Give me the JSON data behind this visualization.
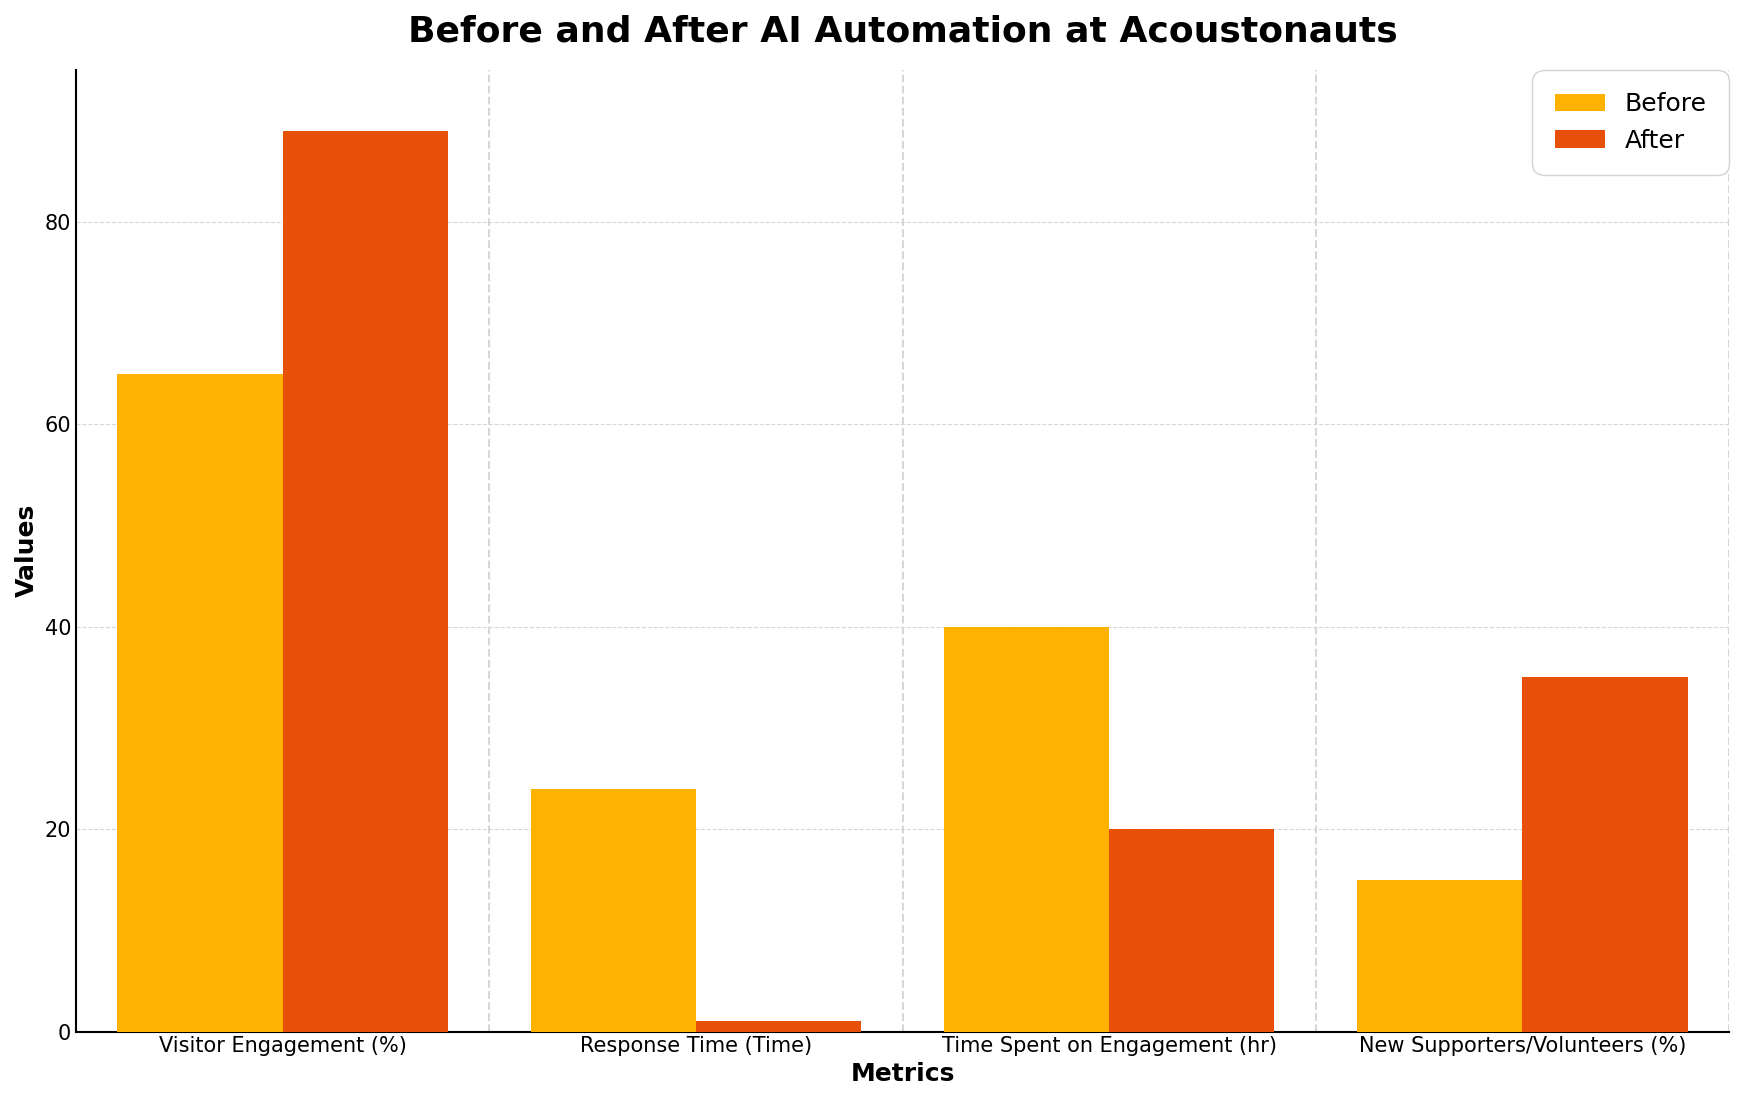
{
  "title": "Before and After AI Automation at Acoustonauts",
  "xlabel": "Metrics",
  "ylabel": "Values",
  "categories": [
    "Visitor Engagement (%)",
    "Response Time (Time)",
    "Time Spent on Engagement (hr)",
    "New Supporters/Volunteers (%)"
  ],
  "before_values": [
    65,
    24,
    40,
    15
  ],
  "after_values": [
    89,
    1,
    20,
    35
  ],
  "before_color": "#FFB300",
  "after_color": "#E8500A",
  "legend_labels": [
    "Before",
    "After"
  ],
  "ylim": [
    0,
    95
  ],
  "title_fontsize": 26,
  "label_fontsize": 18,
  "tick_fontsize": 15,
  "legend_fontsize": 18,
  "bar_width": 0.4,
  "figsize": [
    17.44,
    11.01
  ],
  "dpi": 100
}
